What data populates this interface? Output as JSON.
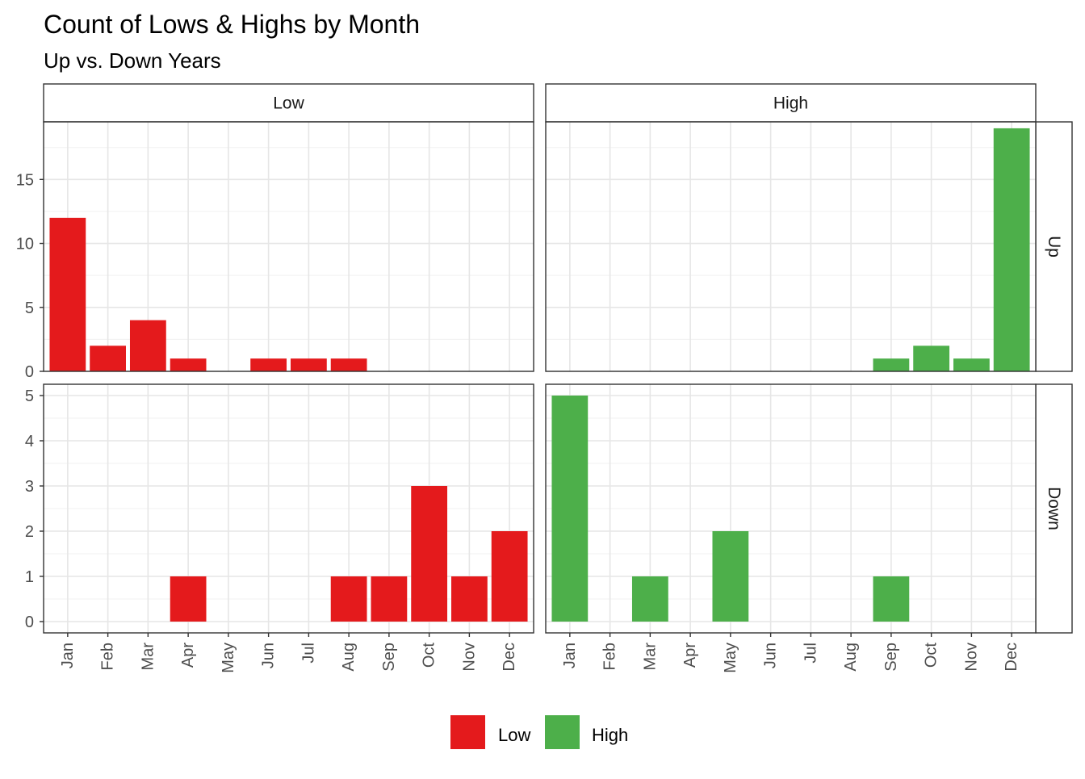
{
  "chart_data": {
    "type": "bar",
    "title": "Count of Lows & Highs by Month",
    "subtitle": "Up vs. Down Years",
    "xlabel": "",
    "ylabel": "",
    "categories": [
      "Jan",
      "Feb",
      "Mar",
      "Apr",
      "May",
      "Jun",
      "Jul",
      "Aug",
      "Sep",
      "Oct",
      "Nov",
      "Dec"
    ],
    "facet_columns": [
      "Low",
      "High"
    ],
    "facet_rows": [
      "Up",
      "Down"
    ],
    "rows": [
      {
        "name": "Up",
        "ylim": [
          0,
          19.5
        ],
        "yticks": [
          0,
          5,
          10,
          15
        ]
      },
      {
        "name": "Down",
        "ylim": [
          -0.25,
          5.25
        ],
        "yticks": [
          0,
          1,
          2,
          3,
          4,
          5
        ]
      }
    ],
    "series": [
      {
        "name": "Low",
        "color": "#E41A1C",
        "row": "Up",
        "column": "Low",
        "values": [
          12,
          2,
          4,
          1,
          0,
          1,
          1,
          1,
          0,
          0,
          0,
          0
        ]
      },
      {
        "name": "High",
        "color": "#4DAF4A",
        "row": "Up",
        "column": "High",
        "values": [
          0,
          0,
          0,
          0,
          0,
          0,
          0,
          0,
          1,
          2,
          1,
          19
        ]
      },
      {
        "name": "Low",
        "color": "#E41A1C",
        "row": "Down",
        "column": "Low",
        "values": [
          0,
          0,
          0,
          1,
          0,
          0,
          0,
          1,
          1,
          3,
          1,
          2
        ]
      },
      {
        "name": "High",
        "color": "#4DAF4A",
        "row": "Down",
        "column": "High",
        "values": [
          5,
          0,
          1,
          0,
          2,
          0,
          0,
          0,
          1,
          0,
          0,
          0
        ]
      }
    ],
    "grid": true,
    "legend": {
      "position": "bottom",
      "items": [
        {
          "label": "Low",
          "color": "#E41A1C"
        },
        {
          "label": "High",
          "color": "#4DAF4A"
        }
      ]
    }
  }
}
